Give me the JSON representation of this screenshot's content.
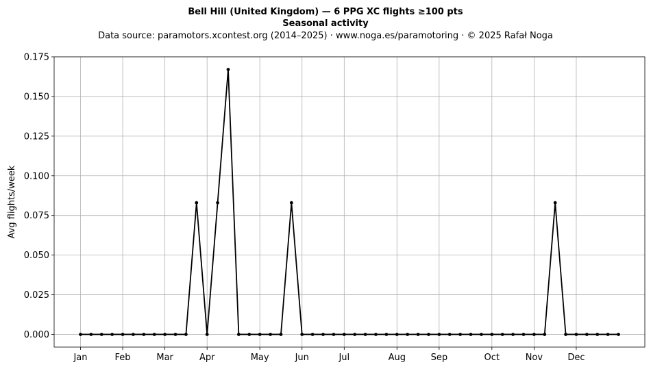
{
  "chart_data": {
    "type": "line",
    "title": "Bell Hill (United Kingdom)  —  6 PPG XC flights ≥100 pts",
    "subtitle": "Seasonal activity",
    "source_note": "Data source: paramotors.xcontest.org (2014–2025)  ·  www.noga.es/paramotoring  ·  © 2025 Rafał Noga",
    "ylabel": "Avg flights/week",
    "xlabel": "",
    "ylim": [
      -0.008,
      0.175
    ],
    "xlim": [
      -2.5,
      53.5
    ],
    "yticks": [
      0.0,
      0.025,
      0.05,
      0.075,
      0.1,
      0.125,
      0.15,
      0.175
    ],
    "ytick_labels": [
      "0.000",
      "0.025",
      "0.050",
      "0.075",
      "0.100",
      "0.125",
      "0.150",
      "0.175"
    ],
    "xticks": [
      0,
      4,
      8,
      12,
      17,
      21,
      25,
      30,
      34,
      39,
      43,
      47
    ],
    "xtick_labels": [
      "Jan",
      "Feb",
      "Mar",
      "Apr",
      "May",
      "Jun",
      "Jul",
      "Aug",
      "Sep",
      "Oct",
      "Nov",
      "Dec"
    ],
    "grid": true,
    "legend": "none",
    "series": [
      {
        "color": "#000000",
        "marker": "circle",
        "x": [
          0,
          1,
          2,
          3,
          4,
          5,
          6,
          7,
          8,
          9,
          10,
          11,
          12,
          13,
          14,
          15,
          16,
          17,
          18,
          19,
          20,
          21,
          22,
          23,
          24,
          25,
          26,
          27,
          28,
          29,
          30,
          31,
          32,
          33,
          34,
          35,
          36,
          37,
          38,
          39,
          40,
          41,
          42,
          43,
          44,
          45,
          46,
          47,
          48,
          49,
          50,
          51
        ],
        "values": [
          0,
          0,
          0,
          0,
          0,
          0,
          0,
          0,
          0,
          0,
          0,
          0.083,
          0,
          0.083,
          0.167,
          0,
          0,
          0,
          0,
          0,
          0.083,
          0,
          0,
          0,
          0,
          0,
          0,
          0,
          0,
          0,
          0,
          0,
          0,
          0,
          0,
          0,
          0,
          0,
          0,
          0,
          0,
          0,
          0,
          0,
          0,
          0.083,
          0,
          0,
          0,
          0,
          0,
          0
        ]
      }
    ]
  }
}
